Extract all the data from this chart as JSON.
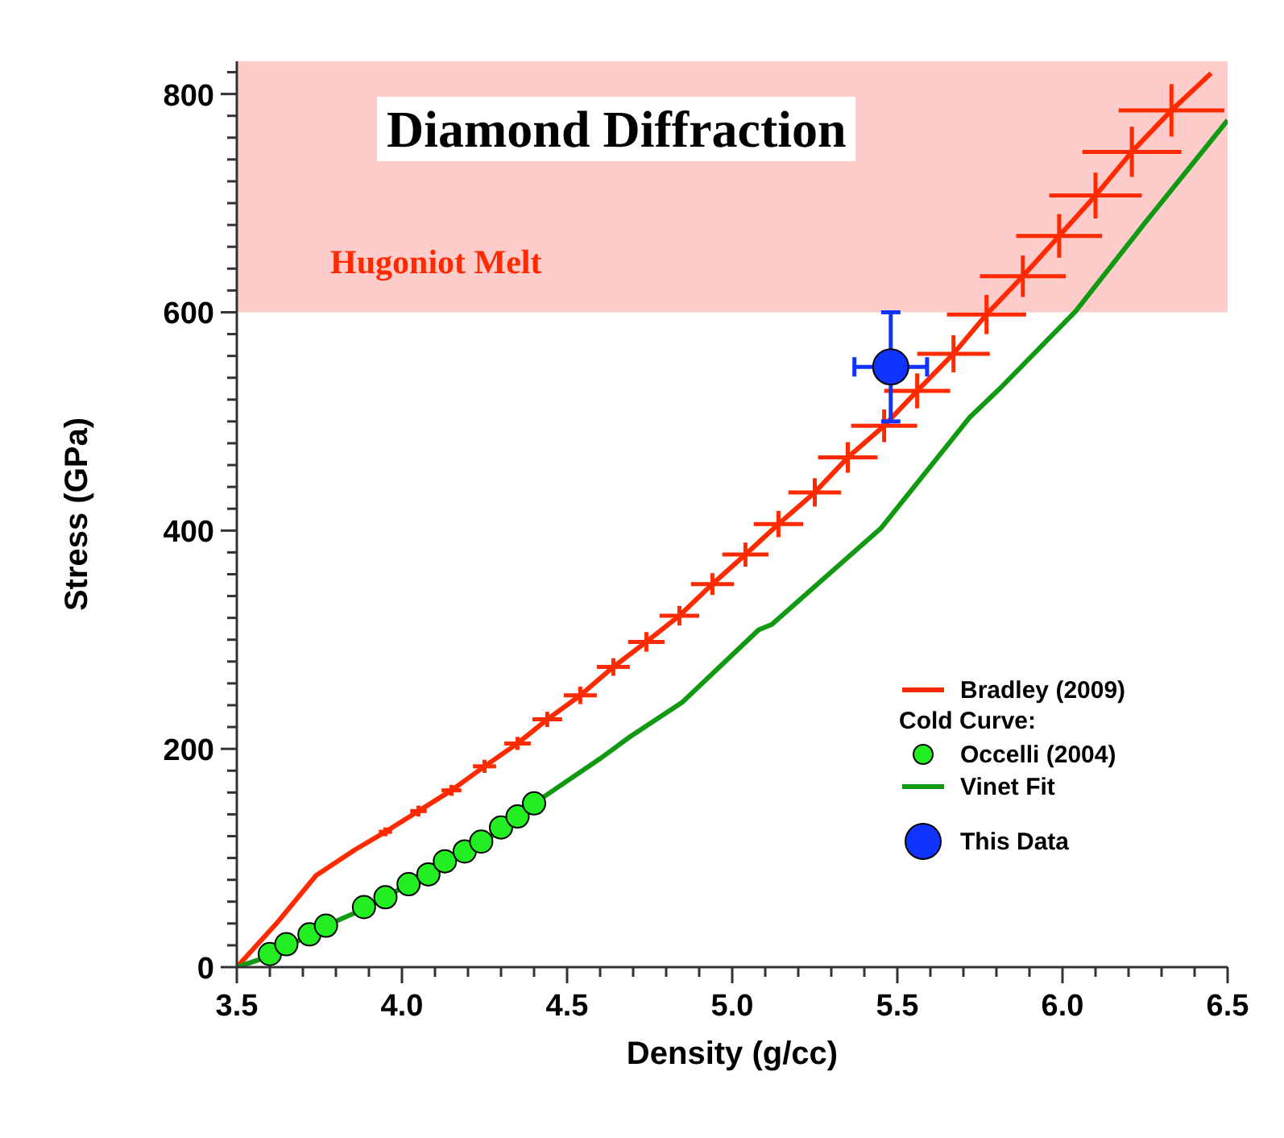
{
  "chart_data": {
    "type": "line",
    "title": "Diamond Diffraction",
    "xlabel": "Density (g/cc)",
    "ylabel": "Stress (GPa)",
    "xlim": [
      3.5,
      6.5
    ],
    "xticks": [
      {
        "value": 3.5,
        "label": "3.5"
      },
      {
        "value": 3.6,
        "label": null
      },
      {
        "value": 3.7,
        "label": null
      },
      {
        "value": 3.8,
        "label": null
      },
      {
        "value": 3.9,
        "label": null
      },
      {
        "value": 4.0,
        "label": "4.0"
      },
      {
        "value": 4.1,
        "label": null
      },
      {
        "value": 4.2,
        "label": null
      },
      {
        "value": 4.3,
        "label": null
      },
      {
        "value": 4.4,
        "label": null
      },
      {
        "value": 4.5,
        "label": "4.5"
      },
      {
        "value": 4.6,
        "label": null
      },
      {
        "value": 4.7,
        "label": null
      },
      {
        "value": 4.8,
        "label": null
      },
      {
        "value": 4.9,
        "label": null
      },
      {
        "value": 5.0,
        "label": "5.0"
      },
      {
        "value": 5.1,
        "label": null
      },
      {
        "value": 5.2,
        "label": null
      },
      {
        "value": 5.3,
        "label": null
      },
      {
        "value": 5.4,
        "label": null
      },
      {
        "value": 5.5,
        "label": "5.5"
      },
      {
        "value": 5.6,
        "label": null
      },
      {
        "value": 5.7,
        "label": null
      },
      {
        "value": 5.8,
        "label": null
      },
      {
        "value": 5.9,
        "label": null
      },
      {
        "value": 6.0,
        "label": "6.0"
      },
      {
        "value": 6.1,
        "label": null
      },
      {
        "value": 6.2,
        "label": null
      },
      {
        "value": 6.3,
        "label": null
      },
      {
        "value": 6.4,
        "label": null
      },
      {
        "value": 6.5,
        "label": "6.5"
      }
    ],
    "ylim": [
      0,
      830
    ],
    "yticks": [
      0,
      {
        "value": 20,
        "label": null
      },
      {
        "value": 40,
        "label": null
      },
      {
        "value": 60,
        "label": null
      },
      {
        "value": 80,
        "label": null
      },
      {
        "value": 100,
        "label": null
      },
      {
        "value": 120,
        "label": null
      },
      {
        "value": 140,
        "label": null
      },
      {
        "value": 160,
        "label": null
      },
      {
        "value": 180,
        "label": null
      },
      200,
      {
        "value": 220,
        "label": null
      },
      {
        "value": 240,
        "label": null
      },
      {
        "value": 260,
        "label": null
      },
      {
        "value": 280,
        "label": null
      },
      {
        "value": 300,
        "label": null
      },
      {
        "value": 320,
        "label": null
      },
      {
        "value": 340,
        "label": null
      },
      {
        "value": 360,
        "label": null
      },
      {
        "value": 380,
        "label": null
      },
      400,
      {
        "value": 420,
        "label": null
      },
      {
        "value": 440,
        "label": null
      },
      {
        "value": 460,
        "label": null
      },
      {
        "value": 480,
        "label": null
      },
      {
        "value": 500,
        "label": null
      },
      {
        "value": 520,
        "label": null
      },
      {
        "value": 540,
        "label": null
      },
      {
        "value": 560,
        "label": null
      },
      {
        "value": 580,
        "label": null
      },
      600,
      {
        "value": 620,
        "label": null
      },
      {
        "value": 640,
        "label": null
      },
      {
        "value": 660,
        "label": null
      },
      {
        "value": 680,
        "label": null
      },
      {
        "value": 700,
        "label": null
      },
      {
        "value": 720,
        "label": null
      },
      {
        "value": 740,
        "label": null
      },
      {
        "value": 760,
        "label": null
      },
      {
        "value": 780,
        "label": null
      },
      800,
      {
        "value": 820,
        "label": null
      }
    ],
    "legend": "bottom right",
    "annotations": [
      "Cold Curve:"
    ],
    "bands": [
      {
        "axis": "y",
        "from": 600,
        "to": 830,
        "label": "Hugoniot Melt",
        "color": "#ffcccc"
      }
    ],
    "series": [
      {
        "name": "Bradley (2009)",
        "color": "#ff2a00",
        "marker": "none",
        "x": [
          3.5,
          3.62,
          3.74,
          3.86,
          3.95,
          4.05,
          4.15,
          4.25,
          4.35,
          4.44,
          4.54,
          4.64,
          4.74,
          4.84,
          4.94,
          5.04,
          5.14,
          5.25,
          5.35,
          5.46,
          5.56,
          5.67,
          5.77,
          5.88,
          5.99,
          6.1,
          6.21,
          6.33,
          6.45
        ],
        "values": [
          0,
          40,
          84,
          108,
          124,
          143,
          162,
          184,
          205,
          227,
          249,
          275,
          298,
          322,
          351,
          378,
          406,
          435,
          467,
          496,
          528,
          562,
          598,
          633,
          670,
          707,
          747,
          785,
          819
        ],
        "errors": [
          null,
          null,
          null,
          null,
          4,
          5,
          5,
          6,
          6,
          7,
          8,
          8,
          9,
          9,
          10,
          11,
          12,
          13,
          14,
          15,
          16,
          17,
          18,
          19,
          20,
          21,
          23,
          24,
          null
        ],
        "xerrors": [
          null,
          null,
          null,
          null,
          0.02,
          0.025,
          0.03,
          0.035,
          0.04,
          0.045,
          0.05,
          0.05,
          0.055,
          0.06,
          0.065,
          0.07,
          0.075,
          0.08,
          0.09,
          0.1,
          0.1,
          0.11,
          0.12,
          0.13,
          0.13,
          0.14,
          0.15,
          0.16,
          null
        ]
      },
      {
        "name": "Occelli (2004)",
        "type": "scatter",
        "color": "#22ee22",
        "marker": "circle",
        "x": [
          3.6,
          3.65,
          3.72,
          3.77,
          3.885,
          3.95,
          4.02,
          4.08,
          4.13,
          4.19,
          4.24,
          4.3,
          4.35,
          4.4
        ],
        "values": [
          12,
          21,
          30,
          38,
          55,
          64,
          76,
          85,
          97,
          106,
          115,
          128,
          138,
          150
        ]
      },
      {
        "name": "Vinet Fit",
        "color": "#119911",
        "marker": "none",
        "x": [
          3.5,
          3.6,
          3.77,
          3.89,
          4.02,
          4.13,
          4.25,
          4.4,
          4.6,
          4.69,
          4.85,
          5.08,
          5.12,
          5.45,
          5.72,
          5.81,
          6.04,
          6.25,
          6.5
        ],
        "values": [
          0,
          10,
          38,
          54,
          76,
          98,
          115,
          150,
          191,
          211,
          243,
          309,
          314,
          402,
          504,
          530,
          601,
          682,
          776
        ]
      },
      {
        "name": "This Data",
        "type": "scatter",
        "color": "#1133ff",
        "marker": "circle",
        "x": [
          5.48
        ],
        "values": [
          550
        ],
        "errors": [
          50
        ],
        "xerrors": [
          0.11
        ]
      }
    ]
  }
}
